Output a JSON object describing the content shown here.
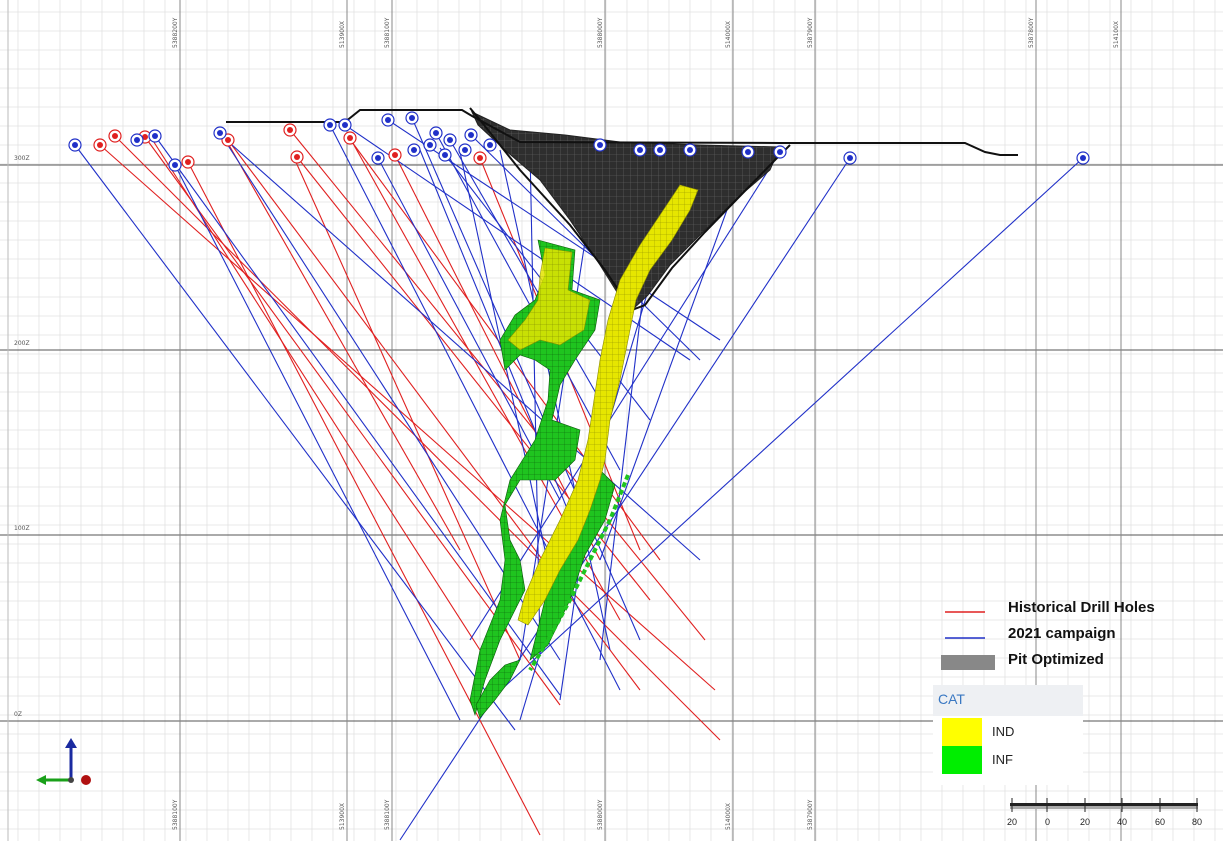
{
  "section": {
    "elevation_labels": [
      "300Z",
      "200Z",
      "100Z",
      "0Z"
    ],
    "top_ticks": [
      "5388200Y",
      "513900X",
      "5388100Y",
      "5388000Y",
      "514000X",
      "5387900Y",
      "5387800Y",
      "514100X"
    ],
    "bottom_ticks": [
      "5388100Y",
      "513900X",
      "5388100Y",
      "5388000Y",
      "514000X",
      "5387900Y"
    ]
  },
  "legend": {
    "items": [
      {
        "label": "Historical Drill Holes",
        "color": "#e02020"
      },
      {
        "label": "2021 campaign",
        "color": "#2030c8"
      },
      {
        "label": "Pit Optimized",
        "color": "#888888"
      }
    ]
  },
  "category_legend": {
    "title": "CAT",
    "items": [
      {
        "label": "IND",
        "color": "#ffff00"
      },
      {
        "label": "INF",
        "color": "#00ee00"
      }
    ]
  },
  "scale_bar": {
    "labels": [
      "20",
      "0",
      "20",
      "40",
      "60",
      "80"
    ]
  },
  "colors": {
    "historical": "#e02020",
    "campaign_2021": "#2030c8",
    "pit": "#2e2e2e",
    "ind": "#e6e600",
    "inf": "#1fc41f"
  }
}
